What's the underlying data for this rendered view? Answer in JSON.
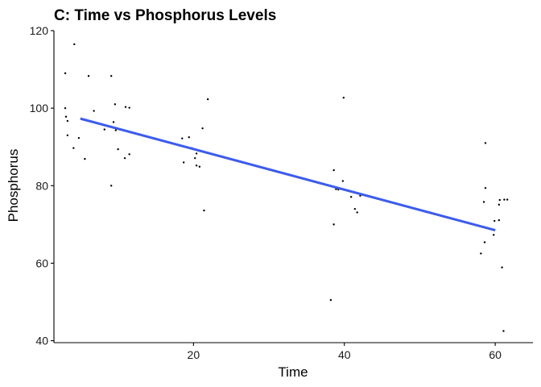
{
  "chart_data": {
    "type": "scatter",
    "title": "C:  Time vs Phosphorus Levels",
    "xlabel": "Time",
    "ylabel": "Phosphorus",
    "xlim": [
      1.5,
      65
    ],
    "ylim": [
      39.5,
      120
    ],
    "xticks": [
      20,
      40,
      60
    ],
    "xtick_labels": [
      "20",
      "40",
      "60"
    ],
    "yticks": [
      40,
      60,
      80,
      100,
      120
    ],
    "ytick_labels": [
      "40",
      "60",
      "80",
      "100",
      "120"
    ],
    "grid": false,
    "series": [
      {
        "name": "observations",
        "x": [
          3,
          4.2,
          6.1,
          9.1,
          3,
          3.1,
          9.6,
          11,
          11.5,
          6.8,
          3.3,
          8.2,
          9.7,
          4.8,
          9.4,
          3.3,
          10,
          4.1,
          11.5,
          10.9,
          5.6,
          9.1,
          18.5,
          19.4,
          21.2,
          19.8,
          20.4,
          20.2,
          20.8,
          18.7,
          20.4,
          21.9,
          21.4,
          38.6,
          39.9,
          38.9,
          39.8,
          39.2,
          40.9,
          42.1,
          41.4,
          41.7,
          38.6,
          38.2,
          58.7,
          61.2,
          58.7,
          60.6,
          58.5,
          59.8,
          61.6,
          60.5,
          59.9,
          60.5,
          58.6,
          58.1,
          60.9,
          61.1
        ],
        "y": [
          109,
          116.5,
          108.3,
          108.3,
          100,
          97.8,
          101,
          100.3,
          100.1,
          99.3,
          93,
          94.5,
          94.3,
          92.3,
          96.4,
          96.7,
          89.4,
          89.7,
          88.1,
          87.1,
          86.9,
          80,
          92.2,
          92.5,
          94.8,
          89.7,
          88.3,
          87.1,
          84.9,
          86,
          85.2,
          102.3,
          73.6,
          84,
          102.7,
          79.1,
          81.2,
          79,
          77.1,
          77.4,
          74,
          73.1,
          70,
          50.5,
          91,
          76.4,
          79.4,
          76.3,
          75.8,
          67.3,
          76.4,
          75.1,
          70.9,
          71.1,
          65.4,
          62.5,
          58.9,
          42.5
        ]
      }
    ],
    "fit_line": {
      "name": "linear fit",
      "x": [
        5,
        60
      ],
      "y": [
        97.3,
        68.5
      ],
      "color": "#3B5BF2"
    }
  }
}
